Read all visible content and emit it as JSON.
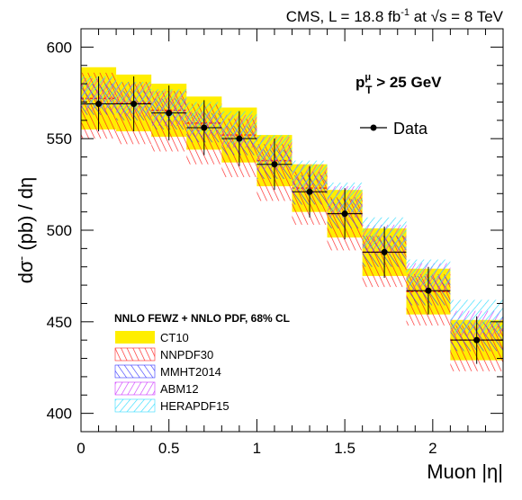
{
  "chart_data": {
    "type": "bar",
    "header": "CMS, L = 18.8 fb",
    "header_sup": "-1",
    "header_mid": " at ",
    "header_sqrt": "√",
    "header_tail": "s = 8 TeV",
    "ylabel": "dσ",
    "ylabel_sup": "-",
    "ylabel_tail": " (pb) / dη",
    "xlabel": "Muon |η|",
    "cut_p": "p",
    "cut_sup": "μ",
    "cut_sub": "T",
    "cut_tail": " > 25 GeV",
    "legend_title": "NNLO FEWZ + NNLO PDF, 68% CL",
    "data_legend": "Data",
    "xlim": [
      0,
      2.4
    ],
    "ylim": [
      390,
      610
    ],
    "x_ticks": [
      0,
      0.5,
      1,
      1.5,
      2
    ],
    "x_tick_labels": [
      "0",
      "0.5",
      "1",
      "1.5",
      "2"
    ],
    "y_ticks": [
      400,
      450,
      500,
      550,
      600
    ],
    "y_tick_labels": [
      "400",
      "450",
      "500",
      "550",
      "600"
    ],
    "bins": [
      [
        0,
        0.2
      ],
      [
        0.2,
        0.4
      ],
      [
        0.4,
        0.6
      ],
      [
        0.6,
        0.8
      ],
      [
        0.8,
        1.0
      ],
      [
        1.0,
        1.2
      ],
      [
        1.2,
        1.4
      ],
      [
        1.4,
        1.6
      ],
      [
        1.6,
        1.85
      ],
      [
        1.85,
        2.1
      ],
      [
        2.1,
        2.4
      ]
    ],
    "data": {
      "x": [
        0.1,
        0.3,
        0.5,
        0.7,
        0.9,
        1.1,
        1.3,
        1.5,
        1.725,
        1.975,
        2.25
      ],
      "y": [
        569,
        569,
        564,
        556,
        550,
        536,
        521,
        509,
        488,
        467,
        440
      ],
      "err": [
        15,
        15,
        15,
        15,
        15,
        14,
        14,
        14,
        14,
        13,
        13
      ]
    },
    "series": [
      {
        "name": "CT10",
        "style": "fill",
        "color": "#ffee00",
        "low": [
          555,
          554,
          551,
          544,
          537,
          524,
          510,
          496,
          475,
          454,
          429
        ],
        "high": [
          589,
          585,
          580,
          573,
          567,
          552,
          536,
          522,
          501,
          479,
          451
        ]
      },
      {
        "name": "NNPDF30",
        "style": "hatch-red",
        "color": "#ff2020",
        "low": [
          550,
          547,
          543,
          536,
          529,
          516,
          503,
          489,
          469,
          448,
          423
        ],
        "high": [
          586,
          581,
          576,
          569,
          561,
          547,
          532,
          518,
          497,
          476,
          448
        ]
      },
      {
        "name": "MMHT2014",
        "style": "hatch-blue",
        "color": "#3333ff",
        "low": [
          563,
          560,
          555,
          548,
          541,
          528,
          514,
          501,
          480,
          459,
          434
        ],
        "high": [
          580,
          576,
          572,
          564,
          557,
          544,
          530,
          517,
          497,
          475,
          450
        ]
      },
      {
        "name": "ABM12",
        "style": "hatch-magenta",
        "color": "#cc33ff",
        "low": [
          565,
          562,
          557,
          551,
          545,
          533,
          520,
          507,
          487,
          467,
          442
        ],
        "high": [
          583,
          580,
          576,
          565,
          563,
          551,
          536,
          524,
          503,
          482,
          456
        ]
      },
      {
        "name": "HERAPDF15",
        "style": "hatch-cyan",
        "color": "#33ddff",
        "low": [
          567,
          564,
          560,
          553,
          547,
          535,
          522,
          510,
          490,
          470,
          444
        ],
        "high": [
          584,
          581,
          577,
          570,
          565,
          552,
          538,
          526,
          507,
          484,
          462
        ]
      }
    ],
    "grid": false,
    "legend_placement": "lower-left"
  }
}
